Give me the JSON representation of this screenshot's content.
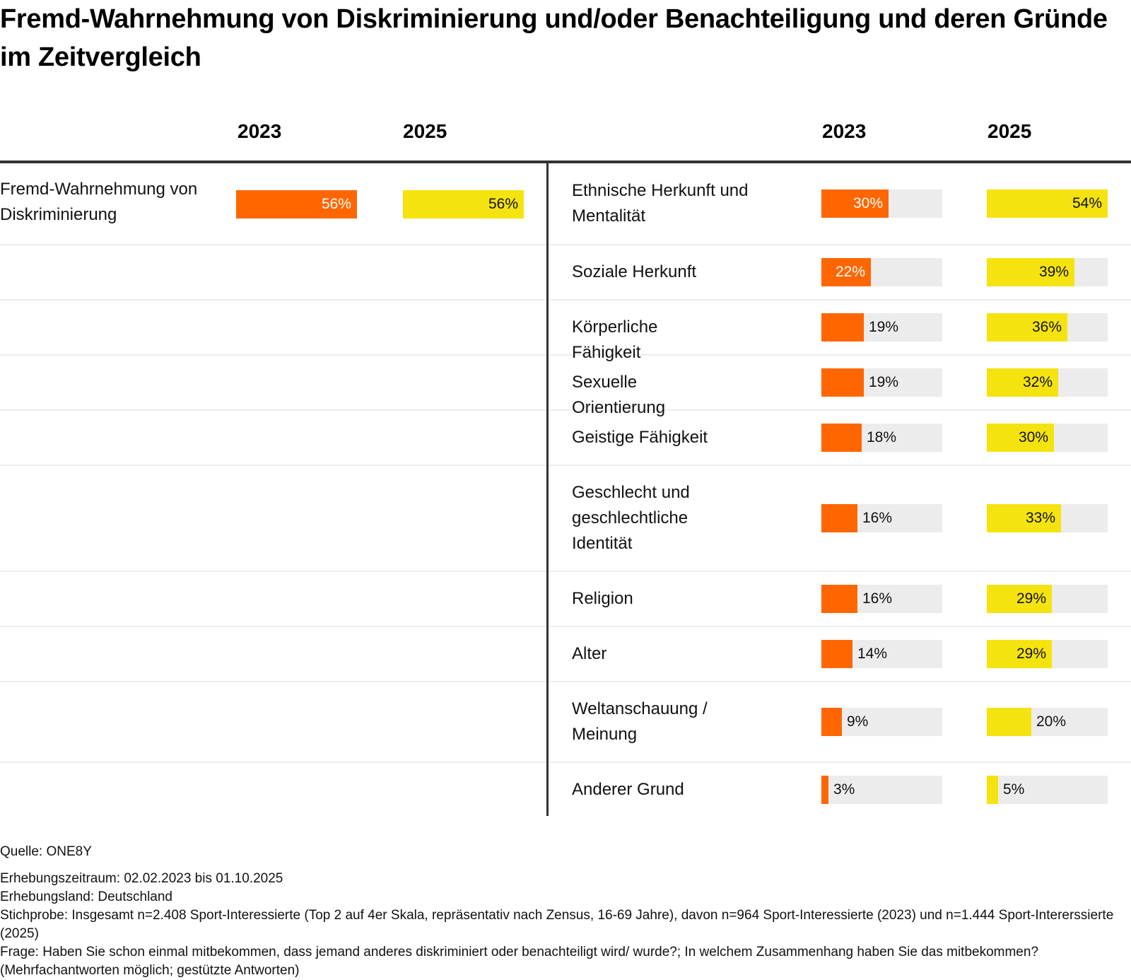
{
  "title": "Fremd-Wahrnehmung von Diskriminierung und/oder Benachteiligung und deren Gründe im Zeitvergleich",
  "colors": {
    "year_2023": "#ff6600",
    "year_2025": "#f4e30f",
    "track": "#ececec",
    "rule": "#333333"
  },
  "left_table": {
    "headers": [
      "2023",
      "2025"
    ],
    "rows": [
      {
        "label": "Fremd-Wahrnehmung von Diskriminierung",
        "v2023": 56,
        "v2025": 56,
        "t2023": "56%",
        "t2025": "56%"
      }
    ]
  },
  "right_table": {
    "headers": [
      "2023",
      "2025"
    ],
    "rows": [
      {
        "label": "Ethnische Herkunft und Mentalität",
        "v2023": 30,
        "v2025": 54,
        "t2023": "30%",
        "t2025": "54%"
      },
      {
        "label": "Soziale Herkunft",
        "v2023": 22,
        "v2025": 39,
        "t2023": "22%",
        "t2025": "39%"
      },
      {
        "label": "Körperliche Fähigkeit",
        "v2023": 19,
        "v2025": 36,
        "t2023": "19%",
        "t2025": "36%"
      },
      {
        "label": "Sexuelle Orientierung",
        "v2023": 19,
        "v2025": 32,
        "t2023": "19%",
        "t2025": "32%"
      },
      {
        "label": "Geistige Fähigkeit",
        "v2023": 18,
        "v2025": 30,
        "t2023": "18%",
        "t2025": "30%"
      },
      {
        "label": "Geschlecht und geschlechtliche Identität",
        "v2023": 16,
        "v2025": 33,
        "t2023": "16%",
        "t2025": "33%"
      },
      {
        "label": "Religion",
        "v2023": 16,
        "v2025": 29,
        "t2023": "16%",
        "t2025": "29%"
      },
      {
        "label": "Alter",
        "v2023": 14,
        "v2025": 29,
        "t2023": "14%",
        "t2025": "29%"
      },
      {
        "label": "Weltanschauung / Meinung",
        "v2023": 9,
        "v2025": 20,
        "t2023": "9%",
        "t2025": "20%"
      },
      {
        "label": "Anderer Grund",
        "v2023": 3,
        "v2025": 5,
        "t2023": "3%",
        "t2025": "5%"
      }
    ]
  },
  "footer": {
    "source": "Quelle: ONE8Y",
    "period": "Erhebungszeitraum: 02.02.2023 bis 01.10.2025",
    "country": "Erhebungsland: Deutschland",
    "sample": "Stichprobe: Insgesamt n=2.408 Sport-Interessierte (Top 2 auf 4er Skala, repräsentativ nach Zensus, 16-69 Jahre), davon n=964 Sport-Interessierte (2023) und n=1.444 Sport-Intererssierte (2025)",
    "question": "Frage: Haben Sie schon einmal mitbekommen, dass jemand anderes diskriminiert oder benachteiligt wird/ wurde?; In welchem Zusammenhang haben Sie das mitbekommen? (Mehrfachantworten möglich; gestützte Antworten)"
  },
  "chart_data": {
    "type": "bar",
    "title": "Fremd-Wahrnehmung von Diskriminierung und/oder Benachteiligung und deren Gründe im Zeitvergleich",
    "xlabel": "",
    "ylabel": "",
    "unit": "%",
    "panels": [
      {
        "name": "Fremd-Wahrnehmung",
        "categories": [
          "Fremd-Wahrnehmung von Diskriminierung"
        ],
        "series": [
          {
            "name": "2023",
            "values": [
              56
            ]
          },
          {
            "name": "2025",
            "values": [
              56
            ]
          }
        ],
        "scale_max": 56
      },
      {
        "name": "Gründe",
        "categories": [
          "Ethnische Herkunft und Mentalität",
          "Soziale Herkunft",
          "Körperliche Fähigkeit",
          "Sexuelle Orientierung",
          "Geistige Fähigkeit",
          "Geschlecht und geschlechtliche Identität",
          "Religion",
          "Alter",
          "Weltanschauung / Meinung",
          "Anderer Grund"
        ],
        "series": [
          {
            "name": "2023",
            "values": [
              30,
              22,
              19,
              19,
              18,
              16,
              16,
              14,
              9,
              3
            ]
          },
          {
            "name": "2025",
            "values": [
              54,
              39,
              36,
              32,
              30,
              33,
              29,
              29,
              20,
              5
            ]
          }
        ],
        "scale_max": 54
      }
    ],
    "legend": "column-headers-top",
    "grid": false
  }
}
